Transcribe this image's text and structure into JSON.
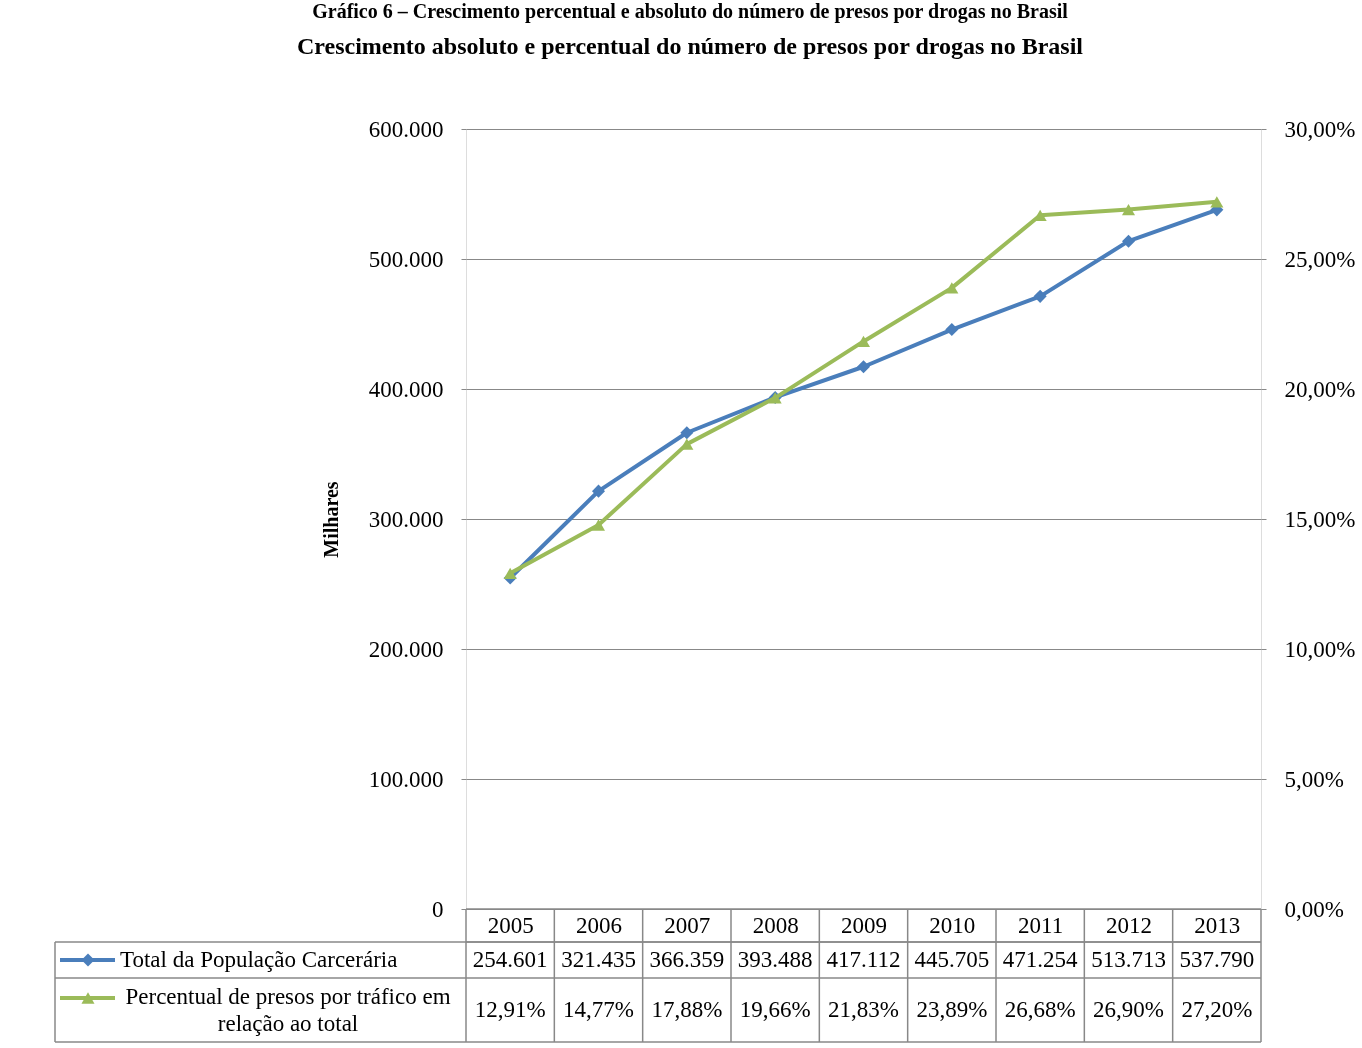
{
  "chart_data": {
    "type": "line",
    "title": "Crescimento absoluto e percentual do número de presos por drogas no Brasil",
    "ylabel": "Milhares",
    "annotations": [
      "Gráfico 6 – Crescimento percentual e absoluto do número de presos por drogas no Brasil"
    ],
    "categories": [
      "2005",
      "2006",
      "2007",
      "2008",
      "2009",
      "2010",
      "2011",
      "2012",
      "2013"
    ],
    "series": [
      {
        "name": "Total da População Carcerária",
        "color": "#4a7ebb",
        "marker": "diamond",
        "values": [
          254601,
          321435,
          366359,
          393488,
          417112,
          445705,
          471254,
          513713,
          537790
        ],
        "value_labels": [
          "254.601",
          "321.435",
          "366.359",
          "393.488",
          "417.112",
          "445.705",
          "471.254",
          "513.713",
          "537.790"
        ]
      },
      {
        "name": "Percentual de presos por tráfico em relação ao total",
        "color": "#9bbb59",
        "marker": "triangle",
        "axis": "y2",
        "values": [
          12.91,
          14.77,
          17.88,
          19.66,
          21.83,
          23.89,
          26.68,
          26.9,
          27.2
        ],
        "value_labels": [
          "12,91%",
          "14,77%",
          "17,88%",
          "19,66%",
          "21,83%",
          "23,89%",
          "26,68%",
          "26,90%",
          "27,20%"
        ]
      }
    ],
    "ylim": [
      0,
      600000
    ],
    "yticks": [
      {
        "value": 0,
        "label": "0"
      },
      {
        "value": 100000,
        "label": "100.000"
      },
      {
        "value": 200000,
        "label": "200.000"
      },
      {
        "value": 300000,
        "label": "300.000"
      },
      {
        "value": 400000,
        "label": "400.000"
      },
      {
        "value": 500000,
        "label": "500.000"
      },
      {
        "value": 600000,
        "label": "600.000"
      }
    ],
    "y2lim": [
      0,
      30
    ],
    "y2ticks": [
      {
        "value": 0,
        "label": "0,00%"
      },
      {
        "value": 5,
        "label": "5,00%"
      },
      {
        "value": 10,
        "label": "10,00%"
      },
      {
        "value": 15,
        "label": "15,00%"
      },
      {
        "value": 20,
        "label": "20,00%"
      },
      {
        "value": 25,
        "label": "25,00%"
      },
      {
        "value": 30,
        "label": "30,00%"
      }
    ],
    "grid": "y",
    "legend": "bottom",
    "line_style": "solid"
  }
}
